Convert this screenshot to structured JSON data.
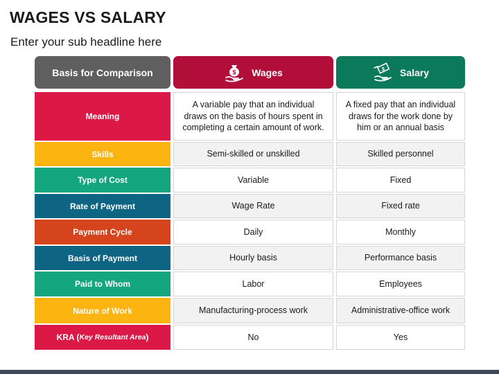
{
  "title": "WAGES VS SALARY",
  "subtitle": "Enter your sub headline here",
  "headers": {
    "basis": "Basis for Comparison",
    "wages": "Wages",
    "salary": "Salary",
    "wages_icon": "money-bag-hand-icon",
    "salary_icon": "cash-hand-icon"
  },
  "colors": {
    "header_basis": "#5f5f5f",
    "header_wages": "#b10e3a",
    "header_salary": "#0a7a5a"
  },
  "rows": [
    {
      "label": "Meaning",
      "color": "#dc1846",
      "wages": "A variable pay that an individual draws on the basis of hours spent in completing a certain amount of work.",
      "salary": "A fixed pay that an individual draws for the work done by him or an annual basis"
    },
    {
      "label": "Skills",
      "color": "#fbb410",
      "wages": "Semi-skilled or unskilled",
      "salary": "Skilled personnel"
    },
    {
      "label": "Type of Cost",
      "color": "#14a77f",
      "wages": "Variable",
      "salary": "Fixed"
    },
    {
      "label": "Rate of Payment",
      "color": "#0d6583",
      "wages": "Wage Rate",
      "salary": "Fixed rate"
    },
    {
      "label": "Payment Cycle",
      "color": "#d5441d",
      "wages": "Daily",
      "salary": "Monthly"
    },
    {
      "label": "Basis of Payment",
      "color": "#0d6583",
      "wages": "Hourly basis",
      "salary": "Performance basis"
    },
    {
      "label": "Paid to Whom",
      "color": "#14a77f",
      "wages": "Labor",
      "salary": "Employees"
    },
    {
      "label": "Nature of Work",
      "color": "#fbb410",
      "wages": "Manufacturing-process work",
      "salary": "Administrative-office work"
    },
    {
      "label": "KRA (",
      "label_italic": "Key Resultant Area",
      "label_close": ")",
      "color": "#dc1846",
      "wages": "No",
      "salary": "Yes"
    }
  ]
}
